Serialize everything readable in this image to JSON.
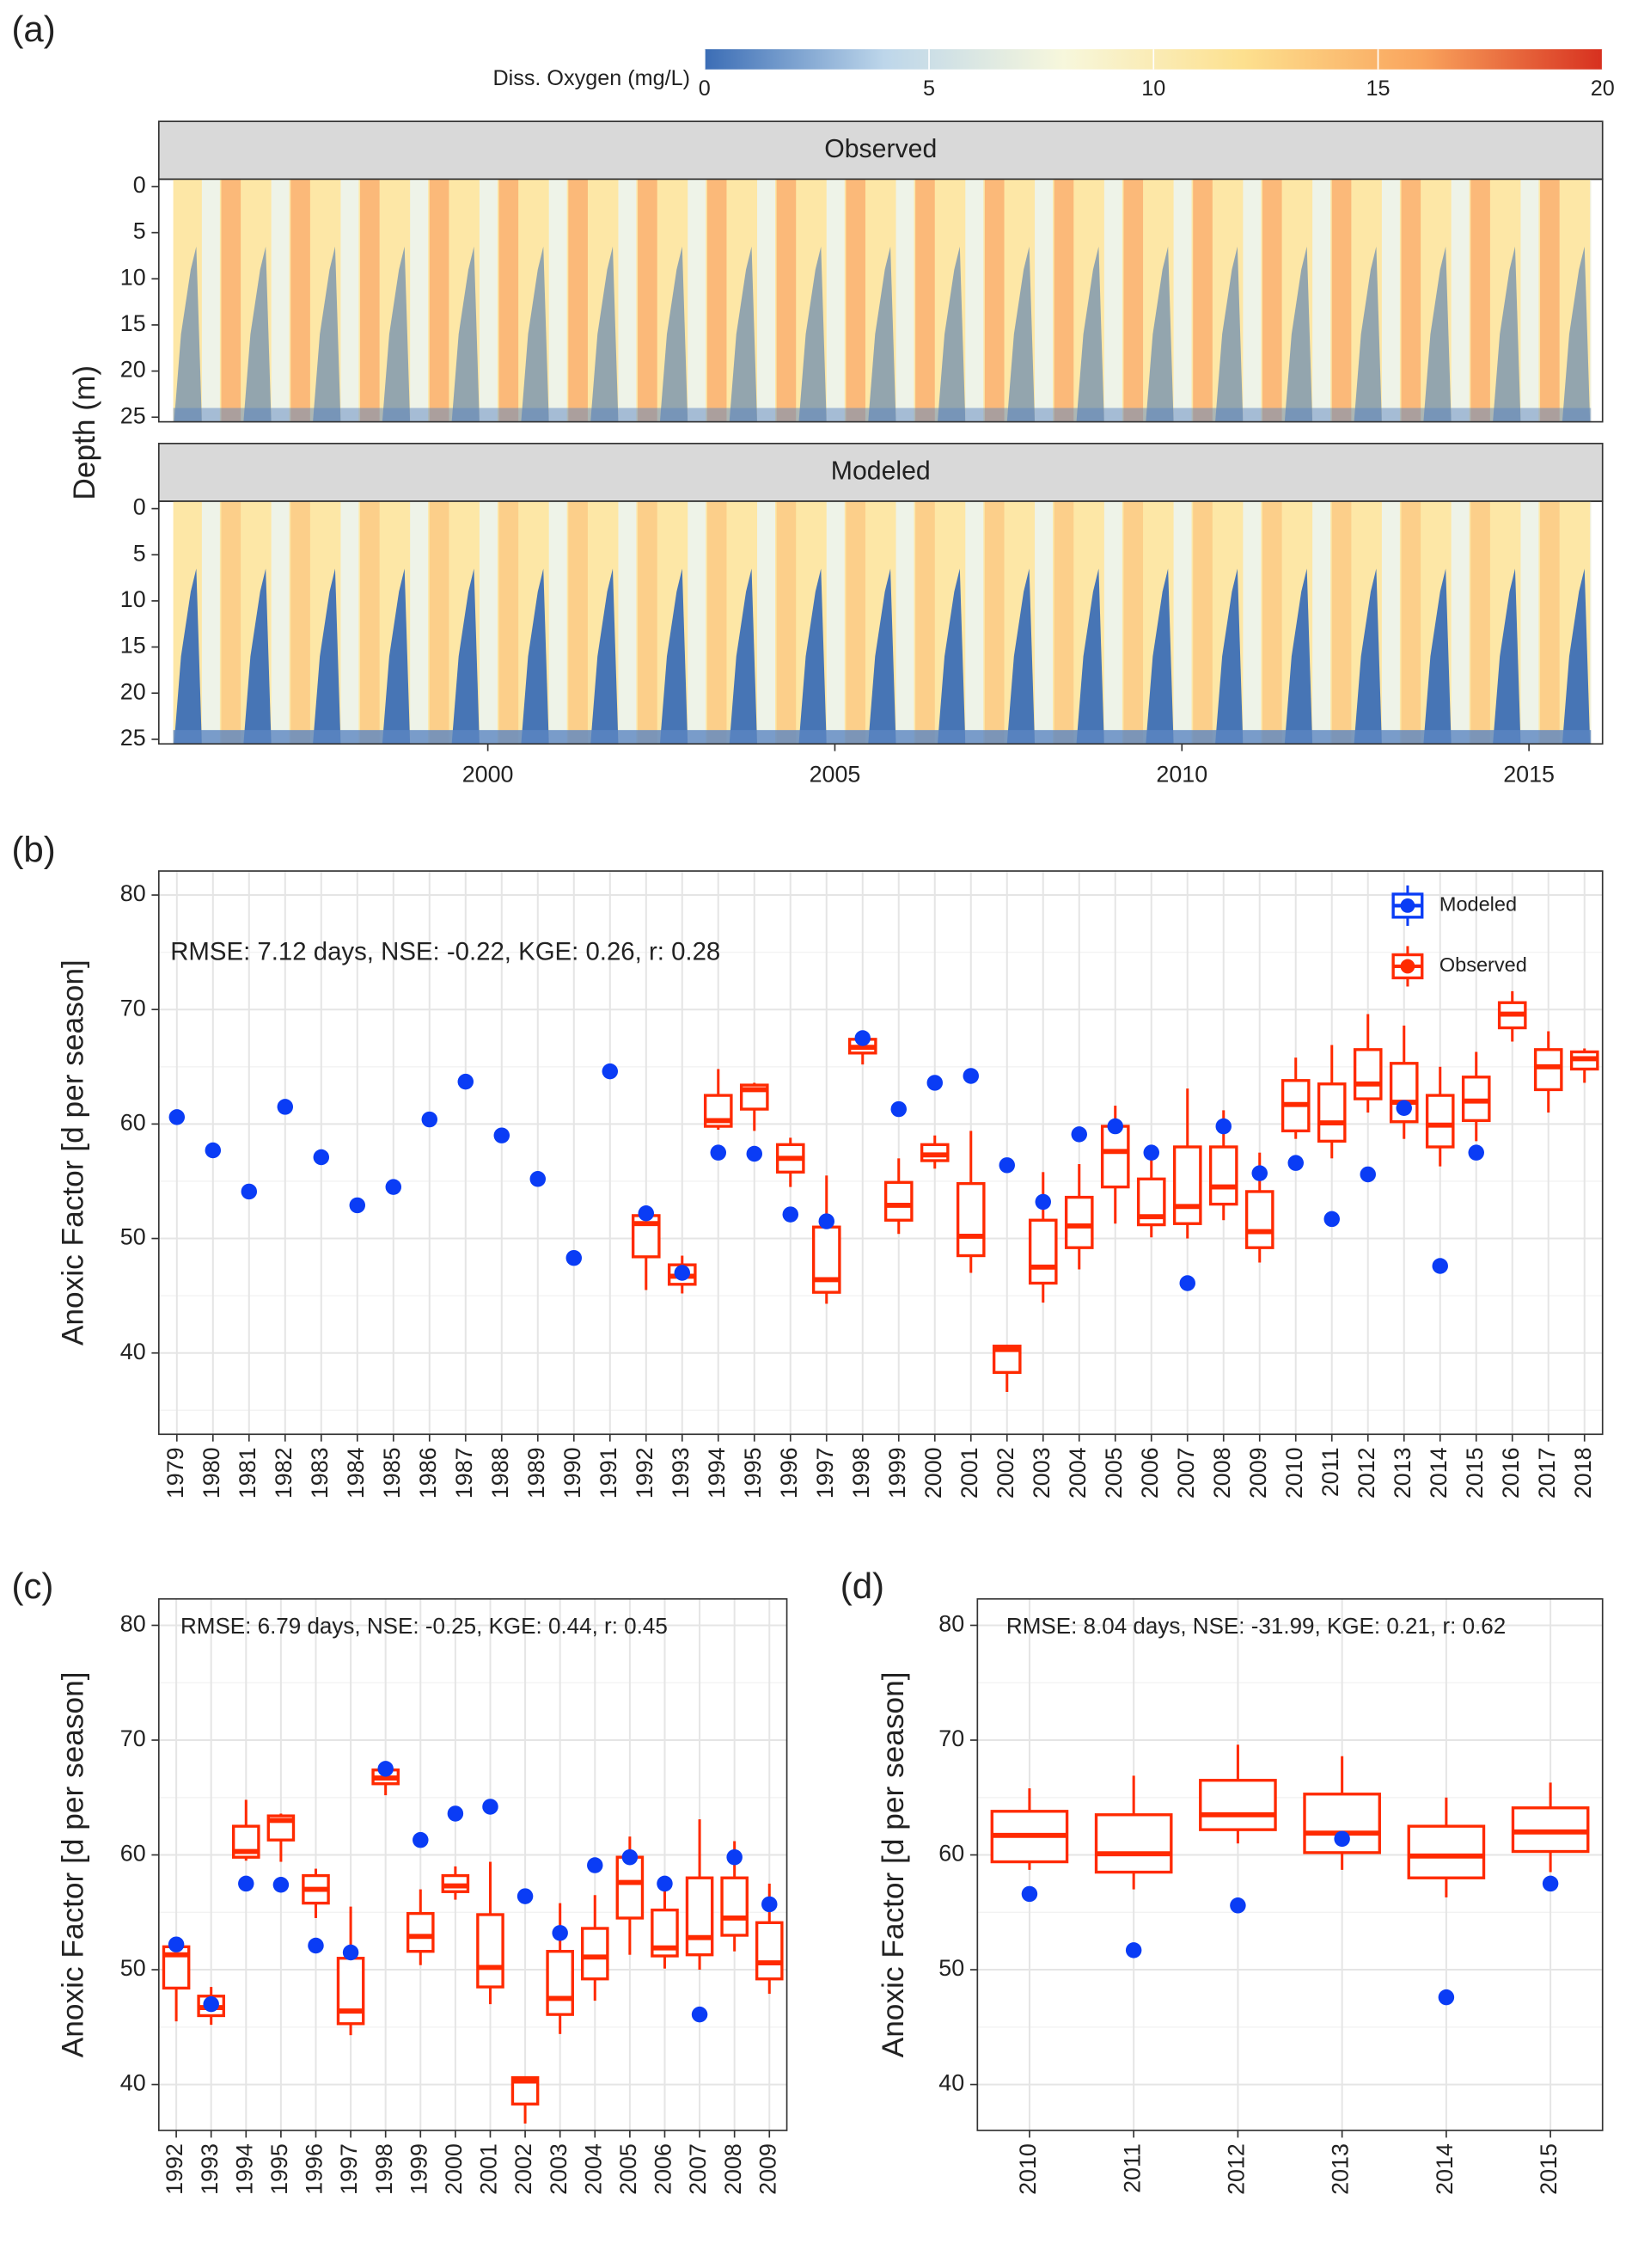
{
  "chart_data": [
    {
      "type": "heatmap",
      "panel": "(a)",
      "colorbar": {
        "label": "Diss. Oxygen (mg/L)",
        "lim": [
          0,
          20
        ],
        "ticks": [
          0,
          5,
          10,
          15,
          20
        ],
        "colors": [
          "#3b6db5",
          "#bdd6ea",
          "#f7f7dc",
          "#fde08e",
          "#f9a35c",
          "#d7301f"
        ]
      },
      "facets": [
        "Observed",
        "Modeled"
      ],
      "ylabel": "Depth (m)",
      "ylim": [
        -0.8,
        25.5
      ],
      "yticks": [
        0,
        5,
        10,
        15,
        20,
        25
      ],
      "y_reversed": true,
      "xlim": [
        1995.26,
        2016.06
      ],
      "xticks": [
        2000,
        2005,
        2010,
        2015
      ],
      "grid": false
    },
    {
      "type": "box",
      "panel": "(b)",
      "ylabel": "Anoxic Factor [d per season]",
      "annotation": "RMSE: 7.12 days, NSE: -0.22, KGE: 0.26, r: 0.28",
      "categories": [
        "1979",
        "1980",
        "1981",
        "1982",
        "1983",
        "1984",
        "1985",
        "1986",
        "1987",
        "1988",
        "1989",
        "1990",
        "1991",
        "1992",
        "1993",
        "1994",
        "1995",
        "1996",
        "1997",
        "1998",
        "1999",
        "2000",
        "2001",
        "2002",
        "2003",
        "2004",
        "2005",
        "2006",
        "2007",
        "2008",
        "2009",
        "2010",
        "2011",
        "2012",
        "2013",
        "2014",
        "2015",
        "2016",
        "2017",
        "2018"
      ],
      "ylim": [
        32.9,
        82.1
      ],
      "yticks": [
        40,
        50,
        60,
        70,
        80
      ],
      "grid": true,
      "legend": "top-right",
      "series": [
        {
          "name": "Modeled",
          "color": "#0a3cf5",
          "values": [
            60.6,
            57.7,
            54.1,
            61.5,
            57.1,
            52.9,
            54.5,
            60.4,
            63.7,
            59.0,
            55.2,
            48.3,
            64.6,
            52.2,
            47.0,
            57.5,
            57.4,
            52.1,
            51.5,
            67.5,
            61.3,
            63.6,
            64.2,
            56.4,
            53.2,
            59.1,
            59.8,
            57.5,
            46.1,
            59.8,
            55.7,
            56.6,
            51.7,
            55.6,
            61.4,
            47.6,
            57.5,
            null,
            null,
            null
          ]
        },
        {
          "name": "Observed",
          "color": "#ff2a00",
          "min": [
            null,
            null,
            null,
            null,
            null,
            null,
            null,
            null,
            null,
            null,
            null,
            null,
            null,
            45.5,
            45.2,
            59.5,
            59.4,
            54.5,
            44.3,
            65.2,
            50.4,
            56.1,
            47.0,
            36.6,
            44.4,
            47.3,
            51.3,
            50.1,
            50.0,
            51.6,
            47.9,
            58.7,
            57.0,
            61.0,
            58.7,
            56.3,
            58.5,
            67.2,
            61.0,
            63.6
          ],
          "q1": [
            null,
            null,
            null,
            null,
            null,
            null,
            null,
            null,
            null,
            null,
            null,
            null,
            null,
            48.4,
            46.0,
            59.8,
            61.3,
            55.8,
            45.3,
            66.2,
            51.6,
            56.8,
            48.5,
            38.3,
            46.1,
            49.2,
            54.5,
            51.2,
            51.3,
            53.0,
            49.2,
            59.4,
            58.5,
            62.2,
            60.2,
            58.0,
            60.3,
            68.4,
            63.0,
            64.8
          ],
          "median": [
            null,
            null,
            null,
            null,
            null,
            null,
            null,
            null,
            null,
            null,
            null,
            null,
            null,
            51.3,
            46.7,
            60.3,
            63.0,
            57.0,
            46.4,
            66.7,
            52.9,
            57.3,
            50.2,
            40.3,
            47.5,
            51.1,
            57.6,
            51.9,
            52.8,
            54.5,
            50.6,
            61.7,
            60.1,
            63.5,
            61.9,
            59.9,
            62.0,
            69.6,
            65.0,
            65.7
          ],
          "q3": [
            null,
            null,
            null,
            null,
            null,
            null,
            null,
            null,
            null,
            null,
            null,
            null,
            null,
            52.0,
            47.7,
            62.5,
            63.4,
            58.2,
            51.0,
            67.4,
            54.9,
            58.2,
            54.8,
            40.6,
            51.6,
            53.6,
            59.8,
            55.2,
            58.0,
            58.0,
            54.1,
            63.8,
            63.5,
            66.5,
            65.3,
            62.5,
            64.1,
            70.6,
            66.5,
            66.3
          ],
          "max": [
            null,
            null,
            null,
            null,
            null,
            null,
            null,
            null,
            null,
            null,
            null,
            null,
            null,
            52.5,
            48.5,
            64.8,
            63.6,
            58.8,
            55.5,
            67.6,
            57.0,
            59.0,
            59.4,
            40.7,
            55.8,
            56.5,
            61.6,
            57.5,
            63.1,
            61.2,
            57.5,
            65.8,
            66.9,
            69.6,
            68.6,
            65.0,
            66.3,
            71.6,
            68.1,
            66.6
          ]
        }
      ]
    },
    {
      "type": "box",
      "panel": "(c)",
      "ylabel": "Anoxic Factor [d per season]",
      "annotation": "RMSE: 6.79 days, NSE: -0.25, KGE: 0.44, r: 0.45",
      "categories": [
        "1992",
        "1993",
        "1994",
        "1995",
        "1996",
        "1997",
        "1998",
        "1999",
        "2000",
        "2001",
        "2002",
        "2003",
        "2004",
        "2005",
        "2006",
        "2007",
        "2008",
        "2009"
      ],
      "ylim": [
        36.0,
        82.3
      ],
      "yticks": [
        40,
        50,
        60,
        70,
        80
      ],
      "grid": true,
      "series": [
        {
          "color": "#0a3cf5",
          "values": [
            52.2,
            47.0,
            57.5,
            57.4,
            52.1,
            51.5,
            67.5,
            61.3,
            63.6,
            64.2,
            56.4,
            53.2,
            59.1,
            59.8,
            57.5,
            46.1,
            59.8,
            55.7
          ]
        },
        {
          "color": "#ff2a00",
          "min": [
            45.5,
            45.2,
            59.5,
            59.4,
            54.5,
            44.3,
            65.2,
            50.4,
            56.1,
            47.0,
            36.6,
            44.4,
            47.3,
            51.3,
            50.1,
            50.0,
            51.6,
            47.9
          ],
          "q1": [
            48.4,
            46.0,
            59.8,
            61.3,
            55.8,
            45.3,
            66.2,
            51.6,
            56.8,
            48.5,
            38.3,
            46.1,
            49.2,
            54.5,
            51.2,
            51.3,
            53.0,
            49.2
          ],
          "median": [
            51.3,
            46.7,
            60.3,
            63.0,
            57.0,
            46.4,
            66.7,
            52.9,
            57.3,
            50.2,
            40.3,
            47.5,
            51.1,
            57.6,
            51.9,
            52.8,
            54.5,
            50.6
          ],
          "q3": [
            52.0,
            47.7,
            62.5,
            63.4,
            58.2,
            51.0,
            67.4,
            54.9,
            58.2,
            54.8,
            40.6,
            51.6,
            53.6,
            59.8,
            55.2,
            58.0,
            58.0,
            54.1
          ],
          "max": [
            52.5,
            48.5,
            64.8,
            63.6,
            58.8,
            55.5,
            67.6,
            57.0,
            59.0,
            59.4,
            40.7,
            55.8,
            56.5,
            61.6,
            57.5,
            63.1,
            61.2,
            57.5
          ]
        }
      ]
    },
    {
      "type": "box",
      "panel": "(d)",
      "ylabel": "Anoxic Factor [d per season]",
      "annotation": "RMSE: 8.04 days, NSE: -31.99, KGE: 0.21, r: 0.62",
      "categories": [
        "2010",
        "2011",
        "2012",
        "2013",
        "2014",
        "2015"
      ],
      "ylim": [
        36.0,
        82.3
      ],
      "yticks": [
        40,
        50,
        60,
        70,
        80
      ],
      "grid": true,
      "series": [
        {
          "color": "#0a3cf5",
          "values": [
            56.6,
            51.7,
            55.6,
            61.4,
            47.6,
            57.5
          ]
        },
        {
          "color": "#ff2a00",
          "min": [
            58.7,
            57.0,
            61.0,
            58.7,
            56.3,
            58.5
          ],
          "q1": [
            59.4,
            58.5,
            62.2,
            60.2,
            58.0,
            60.3
          ],
          "median": [
            61.7,
            60.1,
            63.5,
            61.9,
            59.9,
            62.0
          ],
          "q3": [
            63.8,
            63.5,
            66.5,
            65.3,
            62.5,
            64.1
          ],
          "max": [
            65.8,
            66.9,
            69.6,
            68.6,
            65.0,
            66.3
          ]
        }
      ]
    }
  ]
}
